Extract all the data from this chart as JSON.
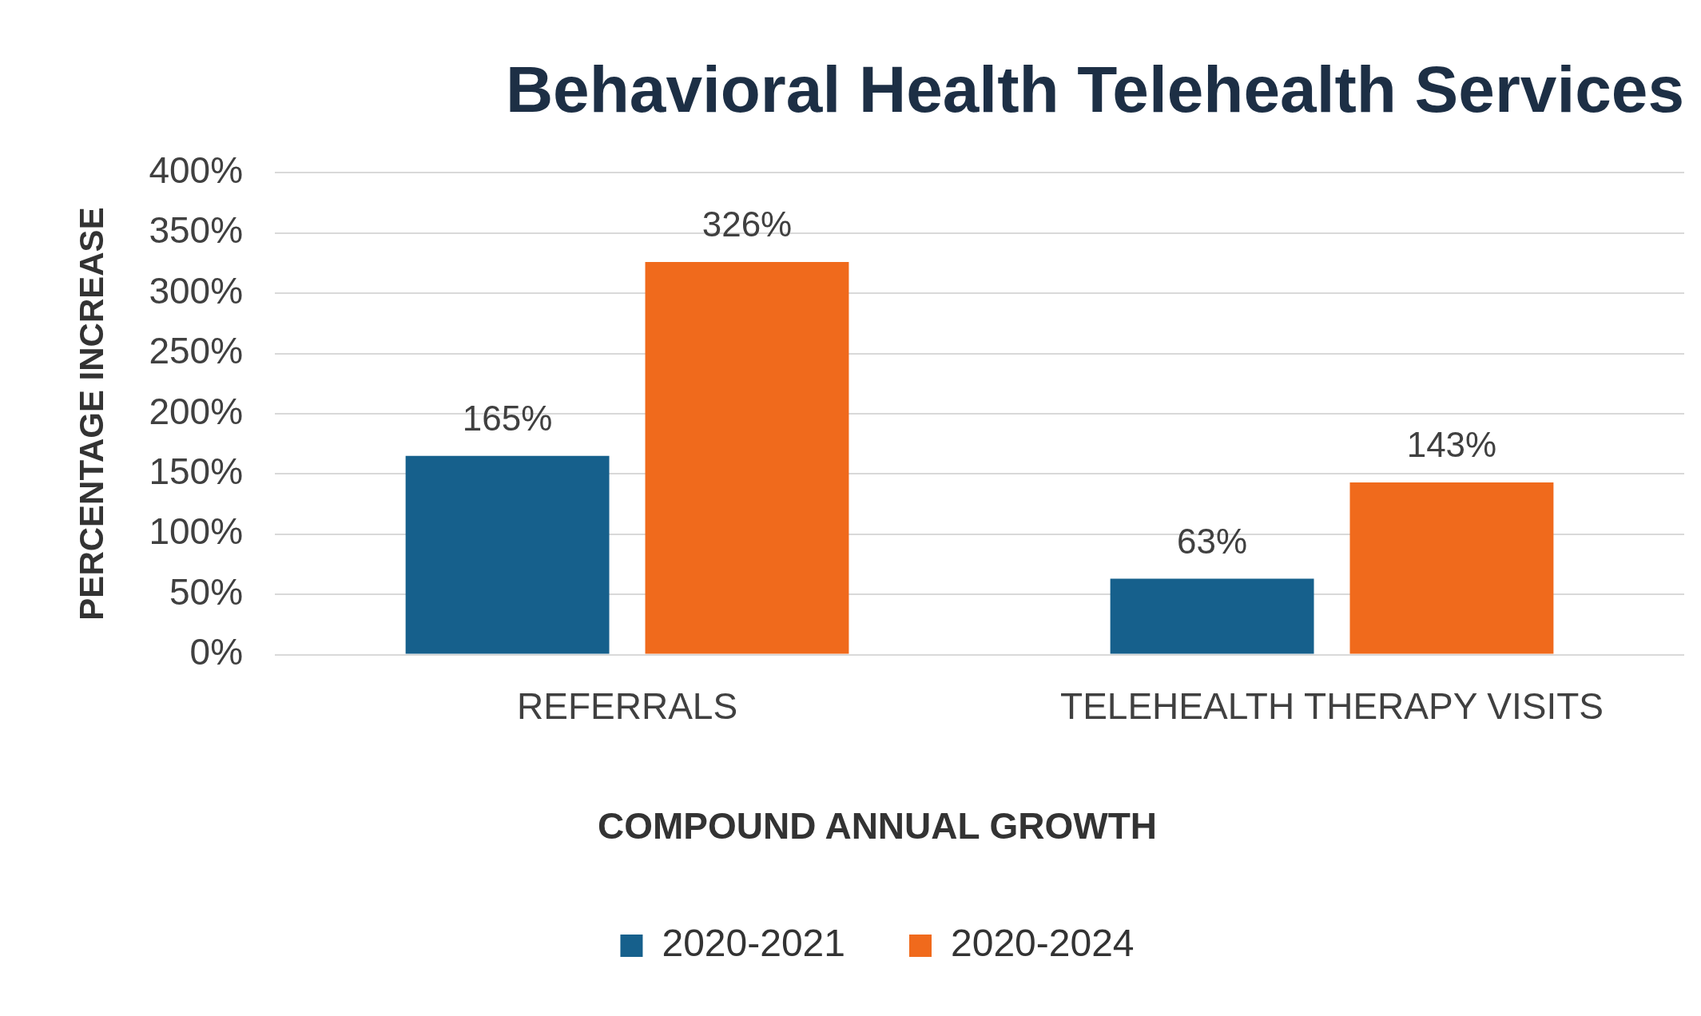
{
  "chart_data": {
    "type": "bar",
    "title": "Behavioral Health Telehealth Services",
    "ylabel": "PERCENTAGE INCREASE",
    "legend_title": "COMPOUND ANNUAL GROWTH",
    "categories": [
      "REFERRALS",
      "TELEHEALTH THERAPY VISITS"
    ],
    "series": [
      {
        "name": "2020-2021",
        "color": "#16608c",
        "values": [
          165,
          63
        ],
        "value_labels": [
          "165%",
          "63%"
        ]
      },
      {
        "name": "2020-2024",
        "color": "#f06a1c",
        "values": [
          326,
          143
        ],
        "value_labels": [
          "326%",
          "143%"
        ]
      }
    ],
    "ylim": [
      0,
      400
    ],
    "yticks": [
      {
        "value": 0,
        "label": "0%"
      },
      {
        "value": 50,
        "label": "50%"
      },
      {
        "value": 100,
        "label": "100%"
      },
      {
        "value": 150,
        "label": "150%"
      },
      {
        "value": 200,
        "label": "200%"
      },
      {
        "value": 250,
        "label": "250%"
      },
      {
        "value": 300,
        "label": "300%"
      },
      {
        "value": 350,
        "label": "350%"
      },
      {
        "value": 400,
        "label": "400%"
      }
    ],
    "grid": "y",
    "legend": "bottom"
  }
}
